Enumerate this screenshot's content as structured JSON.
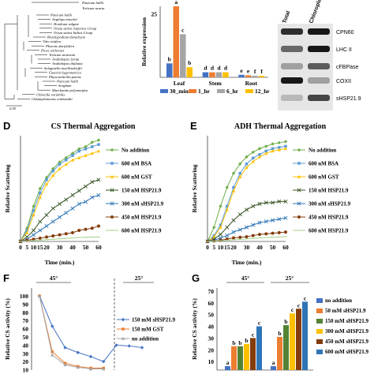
{
  "tree": {
    "species": [
      "Panicum hallii",
      "Aegilops tauschii",
      "Hordeum vulgare",
      "Oryza sativa Japonica Group",
      "Oryza sativa Indica Group",
      "Brachypodium distachyon",
      "Vitis vinifera",
      "Phoenix dactylifera",
      "Picea sitchensis",
      "Triticum aestivum",
      "Arabidopsis lyrata",
      "Arabidopsis thaliana",
      "Selaginella moellendorffii",
      "Funaria hygrometrica",
      "Physcomitrella patens",
      "Panicum hallii",
      "Sorghum",
      "Marchantia polymorpha",
      "Chlorella variabilis",
      "Chlamydomonas reinhardtii"
    ],
    "top_species": [
      "Panicum hallii",
      "Triticum urartu"
    ],
    "scale_label": "0.05"
  },
  "panel_b": {
    "ylabel": "Relative expression",
    "tick_top": "25",
    "groups": [
      "Leaf",
      "Stem",
      "Root"
    ],
    "legend": [
      "30_min",
      "1_hr",
      "6_hr",
      "12_hr"
    ],
    "colors": [
      "#4472c4",
      "#ed7d31",
      "#a5a5a5",
      "#ffc000"
    ],
    "ymax": 28,
    "values": [
      [
        5.5,
        28,
        17,
        4
      ],
      [
        2,
        2,
        2,
        2
      ],
      [
        1,
        0.8,
        0.6,
        0.6
      ]
    ],
    "letters": [
      [
        "b",
        "a",
        "c",
        "b"
      ],
      [
        "d",
        "d",
        "d",
        "d"
      ],
      [
        "e",
        "e",
        "f",
        "f"
      ]
    ]
  },
  "panel_c": {
    "col_labels": [
      "Total",
      "Chloroplast prep."
    ],
    "bands": [
      "CPN60",
      "LHC II",
      "cFBPase",
      "COXII",
      "sHSP21.9"
    ]
  },
  "panel_d": {
    "label": "D",
    "title": "CS Thermal Aggregation",
    "ylabel": "Relative Scattering",
    "xlabel": "Time (min.)",
    "x": [
      0,
      5,
      10,
      15,
      20,
      25,
      30,
      35,
      40,
      45,
      50,
      55,
      60
    ],
    "series": [
      {
        "name": "No addition",
        "color": "#70ad47",
        "marker": "diamond",
        "values": [
          0,
          0.06,
          0.16,
          0.24,
          0.29,
          0.33,
          0.36,
          0.38,
          0.4,
          0.42,
          0.43,
          0.45,
          0.46
        ]
      },
      {
        "name": "600 nM BSA",
        "color": "#5b9bd5",
        "marker": "square",
        "values": [
          0,
          0.05,
          0.14,
          0.22,
          0.28,
          0.32,
          0.35,
          0.37,
          0.39,
          0.41,
          0.42,
          0.43,
          0.44
        ]
      },
      {
        "name": "600 nM GST",
        "color": "#ffc000",
        "marker": "triangle",
        "values": [
          0,
          0.04,
          0.12,
          0.2,
          0.26,
          0.3,
          0.33,
          0.35,
          0.37,
          0.38,
          0.39,
          0.4,
          0.41
        ]
      },
      {
        "name": "150 nM HSP21.9",
        "color": "#375623",
        "marker": "x",
        "values": [
          0,
          0.02,
          0.05,
          0.09,
          0.12,
          0.15,
          0.17,
          0.19,
          0.21,
          0.23,
          0.25,
          0.27,
          0.28
        ]
      },
      {
        "name": "300 nM sHSP21.9",
        "color": "#2e75b6",
        "marker": "x",
        "values": [
          0,
          0.01,
          0.03,
          0.05,
          0.07,
          0.09,
          0.11,
          0.13,
          0.15,
          0.17,
          0.18,
          0.2,
          0.21
        ]
      },
      {
        "name": "450 nM HSP21.9",
        "color": "#843c0c",
        "marker": "circle",
        "values": [
          0,
          0.005,
          0.01,
          0.015,
          0.02,
          0.025,
          0.03,
          0.035,
          0.04,
          0.05,
          0.055,
          0.06,
          0.07
        ]
      },
      {
        "name": "600 nM HSP21.9",
        "color": "#a9d18e",
        "marker": "dash",
        "values": [
          0,
          0.002,
          0.004,
          0.006,
          0.008,
          0.01,
          0.012,
          0.014,
          0.016,
          0.018,
          0.019,
          0.02,
          0.02
        ]
      }
    ],
    "ymax": 0.48
  },
  "panel_e": {
    "label": "E",
    "title": "ADH Thermal Aggregation",
    "ylabel": "Relative Scattering",
    "xlabel": "Time (min.)",
    "x": [
      0,
      5,
      10,
      15,
      20,
      25,
      30,
      35,
      40,
      45,
      50,
      55,
      60
    ],
    "series": [
      {
        "name": "No addition",
        "color": "#70ad47",
        "marker": "diamond",
        "values": [
          0,
          0.12,
          0.3,
          0.46,
          0.58,
          0.66,
          0.72,
          0.76,
          0.79,
          0.81,
          0.83,
          0.84,
          0.85
        ]
      },
      {
        "name": "600 nM BSA",
        "color": "#5b9bd5",
        "marker": "square",
        "values": [
          0,
          0.05,
          0.14,
          0.3,
          0.46,
          0.58,
          0.66,
          0.71,
          0.74,
          0.77,
          0.79,
          0.8,
          0.81
        ]
      },
      {
        "name": "600 nM GST",
        "color": "#ffc000",
        "marker": "triangle",
        "values": [
          0,
          0.04,
          0.12,
          0.27,
          0.43,
          0.55,
          0.63,
          0.68,
          0.72,
          0.75,
          0.77,
          0.78,
          0.79
        ]
      },
      {
        "name": "150 nM HSP21.9",
        "color": "#375623",
        "marker": "x",
        "values": [
          0,
          0.02,
          0.06,
          0.12,
          0.18,
          0.23,
          0.27,
          0.3,
          0.32,
          0.33,
          0.33,
          0.34,
          0.34
        ]
      },
      {
        "name": "300 nM sHSP21.9",
        "color": "#2e75b6",
        "marker": "x",
        "values": [
          0,
          0.01,
          0.03,
          0.05,
          0.08,
          0.1,
          0.12,
          0.14,
          0.16,
          0.17,
          0.18,
          0.19,
          0.2
        ]
      },
      {
        "name": "450 nM HSP21.9",
        "color": "#843c0c",
        "marker": "circle",
        "values": [
          0,
          0.005,
          0.01,
          0.02,
          0.03,
          0.035,
          0.04,
          0.05,
          0.06,
          0.065,
          0.07,
          0.075,
          0.08
        ]
      },
      {
        "name": "600 nM HSP21.9",
        "color": "#a9d18e",
        "marker": "dash",
        "values": [
          0,
          0.003,
          0.006,
          0.01,
          0.014,
          0.018,
          0.022,
          0.026,
          0.03,
          0.034,
          0.036,
          0.038,
          0.04
        ]
      }
    ],
    "ymax": 0.9
  },
  "panel_f": {
    "label": "F",
    "ylabel": "Relative CS activity (%)",
    "ticks": [
      "100",
      "90",
      "80",
      "70",
      "60",
      "50",
      "40",
      "30",
      "20",
      "10"
    ],
    "temp_left": "45°",
    "temp_right": "25°",
    "series": [
      {
        "name": "150 mM sHSP21.9",
        "color": "#4472c4",
        "marker": "diamond",
        "values": [
          100,
          63,
          37,
          31,
          26,
          20,
          40,
          39,
          37
        ]
      },
      {
        "name": "150 mM GST",
        "color": "#ed7d31",
        "marker": "square",
        "values": [
          100,
          32,
          18,
          14,
          12,
          12,
          null,
          null,
          null
        ]
      },
      {
        "name": "no addition",
        "color": "#a5a5a5",
        "marker": "triangle",
        "values": [
          100,
          28,
          16,
          13,
          11,
          11,
          null,
          null,
          null
        ]
      }
    ]
  },
  "panel_g": {
    "label": "G",
    "ylabel": "Relative CS activity (%)",
    "ticks": [
      "70",
      "60",
      "50",
      "40",
      "30",
      "20",
      "10"
    ],
    "temp_left": "45°",
    "temp_right": "25°",
    "legend": [
      "no addition",
      "50 mM sHSP21.9",
      "150 mM sHSP21.9",
      "300 mM sHSP21.9",
      "450 mM sHSP21.9",
      "600 mM sHSP21.9"
    ],
    "colors": [
      "#4472c4",
      "#ed7d31",
      "#548235",
      "#ffc000",
      "#843c0c",
      "#2e75b6"
    ],
    "groups": [
      [
        6,
        23,
        23,
        25,
        30,
        40
      ],
      [
        6,
        31,
        41,
        51,
        55,
        61
      ]
    ],
    "letters": [
      [
        "a",
        "b",
        "b",
        "b",
        "c",
        "c"
      ],
      [
        "a",
        "b",
        "b",
        "c",
        "c",
        "c"
      ]
    ]
  }
}
